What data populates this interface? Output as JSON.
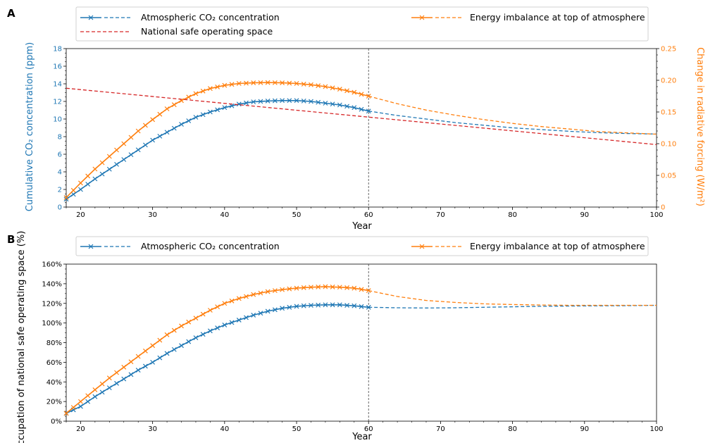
{
  "chart_data": [
    {
      "panel_label": "A",
      "type": "line",
      "xlabel": "Year",
      "xlim": [
        18,
        100
      ],
      "xticks": [
        20,
        30,
        40,
        50,
        60,
        70,
        80,
        90,
        100
      ],
      "ylabel_left": "Cumulative CO₂ concentration (ppm)",
      "ylim_left": [
        0,
        18
      ],
      "yticks_left": [
        "0",
        "2",
        "4",
        "6",
        "8",
        "10",
        "12",
        "14",
        "16",
        "18"
      ],
      "ylabel_right": "Change in radiative forcing (W/m²)",
      "ylim_right": [
        0,
        0.25
      ],
      "yticks_right": [
        "0",
        "0.05",
        "0.10",
        "0.15",
        "0.20",
        "0.25"
      ],
      "vline_x": 60,
      "legend": [
        {
          "text": "Atmospheric CO₂ concentration",
          "color": "#1f77b4",
          "style": "solid-x+dashed"
        },
        {
          "text": "National safe operating space",
          "color": "#d62728",
          "style": "dashed"
        },
        {
          "text": "Energy imbalance at top of atmosphere",
          "color": "#ff7f0e",
          "style": "solid-x+dashed"
        }
      ],
      "series": [
        {
          "name": "Atmospheric CO₂ concentration",
          "axis": "left",
          "color": "#1f77b4",
          "x": [
            18,
            20,
            22,
            24,
            26,
            28,
            30,
            32,
            34,
            36,
            38,
            40,
            42,
            44,
            46,
            48,
            50,
            52,
            54,
            56,
            58,
            60,
            64,
            68,
            72,
            76,
            80,
            84,
            88,
            92,
            96,
            100
          ],
          "values": [
            0.9,
            2.0,
            3.2,
            4.3,
            5.4,
            6.5,
            7.6,
            8.5,
            9.4,
            10.2,
            10.8,
            11.3,
            11.7,
            11.95,
            12.05,
            12.1,
            12.1,
            12.0,
            11.8,
            11.6,
            11.3,
            10.9,
            10.4,
            10.0,
            9.6,
            9.3,
            9.0,
            8.8,
            8.6,
            8.45,
            8.35,
            8.3
          ]
        },
        {
          "name": "Energy imbalance at top of atmosphere",
          "axis": "right",
          "color": "#ff7f0e",
          "x": [
            18,
            20,
            22,
            24,
            26,
            28,
            30,
            32,
            34,
            36,
            38,
            40,
            42,
            44,
            46,
            48,
            50,
            52,
            54,
            56,
            58,
            60,
            64,
            68,
            72,
            76,
            80,
            84,
            88,
            92,
            96,
            100
          ],
          "values": [
            0.015,
            0.038,
            0.06,
            0.08,
            0.1,
            0.12,
            0.138,
            0.155,
            0.168,
            0.179,
            0.187,
            0.192,
            0.195,
            0.196,
            0.1965,
            0.196,
            0.195,
            0.193,
            0.19,
            0.186,
            0.181,
            0.175,
            0.163,
            0.153,
            0.145,
            0.138,
            0.132,
            0.127,
            0.123,
            0.119,
            0.117,
            0.115
          ]
        },
        {
          "name": "National safe operating space",
          "axis": "left",
          "color": "#d62728",
          "x": [
            18,
            100
          ],
          "values": [
            13.5,
            7.1
          ]
        }
      ]
    },
    {
      "panel_label": "B",
      "type": "line",
      "xlabel": "Year",
      "xlim": [
        18,
        100
      ],
      "xticks": [
        20,
        30,
        40,
        50,
        60,
        70,
        80,
        90,
        100
      ],
      "ylabel": "Occupation of national safe operating space (%)",
      "ylim": [
        0,
        160
      ],
      "yticks": [
        "0%",
        "20%",
        "40%",
        "60%",
        "80%",
        "100%",
        "120%",
        "140%",
        "160%"
      ],
      "vline_x": 60,
      "legend": [
        {
          "text": "Atmospheric CO₂ concentration",
          "color": "#1f77b4",
          "style": "solid-x+dashed"
        },
        {
          "text": "Energy imbalance at top of atmosphere",
          "color": "#ff7f0e",
          "style": "solid-x+dashed"
        }
      ],
      "series": [
        {
          "name": "Atmospheric CO₂ concentration",
          "color": "#1f77b4",
          "x": [
            18,
            20,
            22,
            24,
            26,
            28,
            30,
            32,
            34,
            36,
            38,
            40,
            42,
            44,
            46,
            48,
            50,
            52,
            54,
            56,
            58,
            60,
            64,
            68,
            72,
            76,
            80,
            84,
            88,
            92,
            96,
            100
          ],
          "values": [
            8,
            15,
            25,
            34,
            43,
            52,
            60,
            69,
            77,
            85,
            92,
            98,
            103,
            108,
            112,
            115,
            117,
            118,
            118.5,
            118.5,
            117.5,
            116,
            115.5,
            115.3,
            115.5,
            116,
            116.5,
            117,
            117.3,
            117.5,
            117.7,
            118
          ]
        },
        {
          "name": "Energy imbalance at top of atmosphere",
          "color": "#ff7f0e",
          "x": [
            18,
            20,
            22,
            24,
            26,
            28,
            30,
            32,
            34,
            36,
            38,
            40,
            42,
            44,
            46,
            48,
            50,
            52,
            54,
            56,
            58,
            60,
            64,
            68,
            72,
            76,
            80,
            84,
            88,
            92,
            96,
            100
          ],
          "values": [
            8,
            20,
            32,
            44,
            55,
            66,
            77,
            88,
            97,
            105,
            113,
            120,
            125,
            129,
            132,
            134,
            135.5,
            136.5,
            137,
            136.5,
            135.5,
            133,
            127,
            123,
            121,
            119.5,
            118.8,
            118.3,
            118,
            118,
            118,
            118
          ]
        }
      ]
    }
  ]
}
